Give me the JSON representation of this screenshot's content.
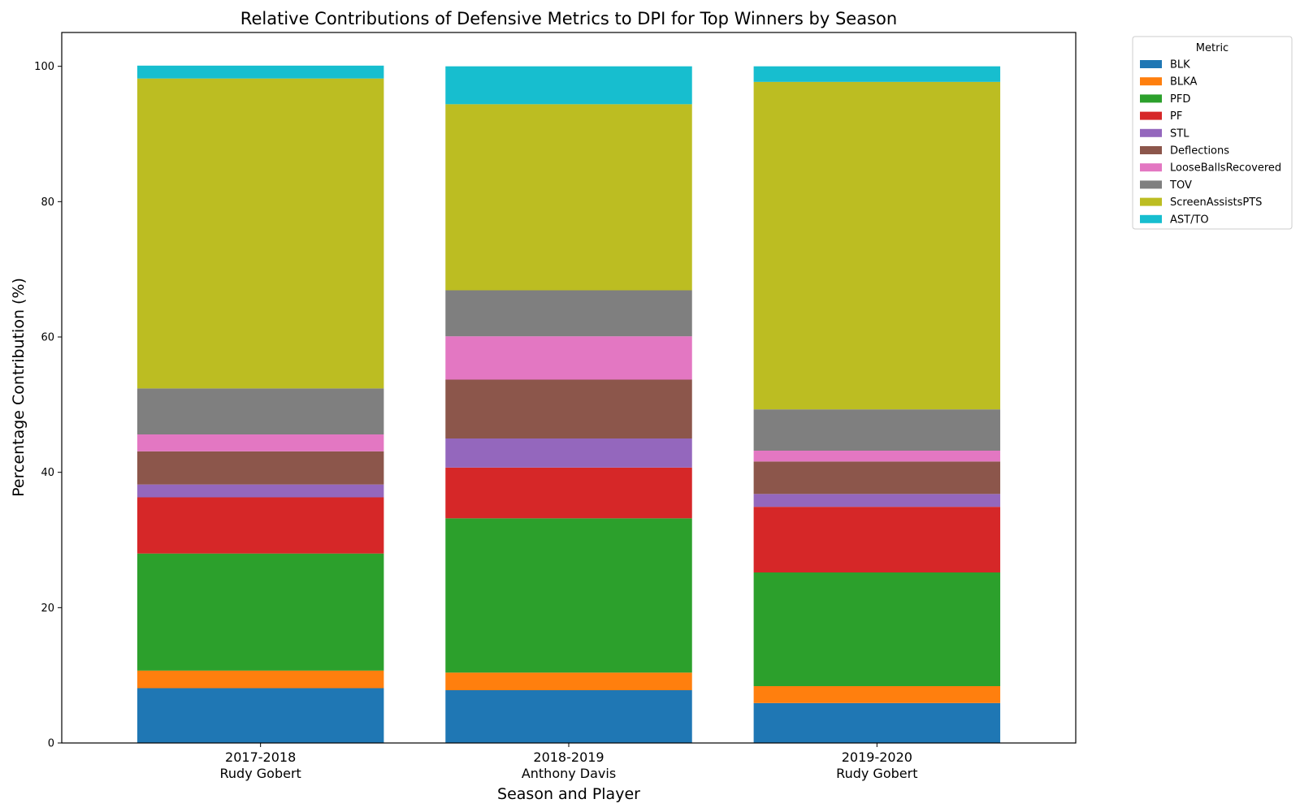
{
  "chart_data": {
    "type": "bar",
    "stacked": true,
    "title": "Relative Contributions of Defensive Metrics to DPI for Top Winners by Season",
    "xlabel": "Season and Player",
    "ylabel": "Percentage Contribution (%)",
    "ylim": [
      0,
      105
    ],
    "yticks": [
      "0",
      "20",
      "40",
      "60",
      "80",
      "100"
    ],
    "categories": [
      {
        "season": "2017-2018",
        "player": "Rudy Gobert"
      },
      {
        "season": "2018-2019",
        "player": "Anthony Davis"
      },
      {
        "season": "2019-2020",
        "player": "Rudy Gobert"
      }
    ],
    "legend": {
      "title": "Metric",
      "placement": "outside upper right"
    },
    "series": [
      {
        "name": "BLK",
        "color": "#1f77b4",
        "values": [
          8.1,
          7.8,
          5.9
        ]
      },
      {
        "name": "BLKA",
        "color": "#ff7f0e",
        "values": [
          2.6,
          2.6,
          2.5
        ]
      },
      {
        "name": "PFD",
        "color": "#2ca02c",
        "values": [
          17.3,
          22.8,
          16.8
        ]
      },
      {
        "name": "PF",
        "color": "#d62728",
        "values": [
          8.3,
          7.5,
          9.7
        ]
      },
      {
        "name": "STL",
        "color": "#9467bd",
        "values": [
          1.9,
          4.3,
          1.9
        ]
      },
      {
        "name": "Deflections",
        "color": "#8c564b",
        "values": [
          4.9,
          8.7,
          4.8
        ]
      },
      {
        "name": "LooseBallsRecovered",
        "color": "#e377c2",
        "values": [
          2.5,
          6.4,
          1.6
        ]
      },
      {
        "name": "TOV",
        "color": "#7f7f7f",
        "values": [
          6.8,
          6.8,
          6.1
        ]
      },
      {
        "name": "ScreenAssistsPTS",
        "color": "#bcbd22",
        "values": [
          45.8,
          27.5,
          48.4
        ]
      },
      {
        "name": "AST/TO",
        "color": "#17becf",
        "values": [
          1.9,
          5.6,
          2.3
        ]
      }
    ]
  }
}
